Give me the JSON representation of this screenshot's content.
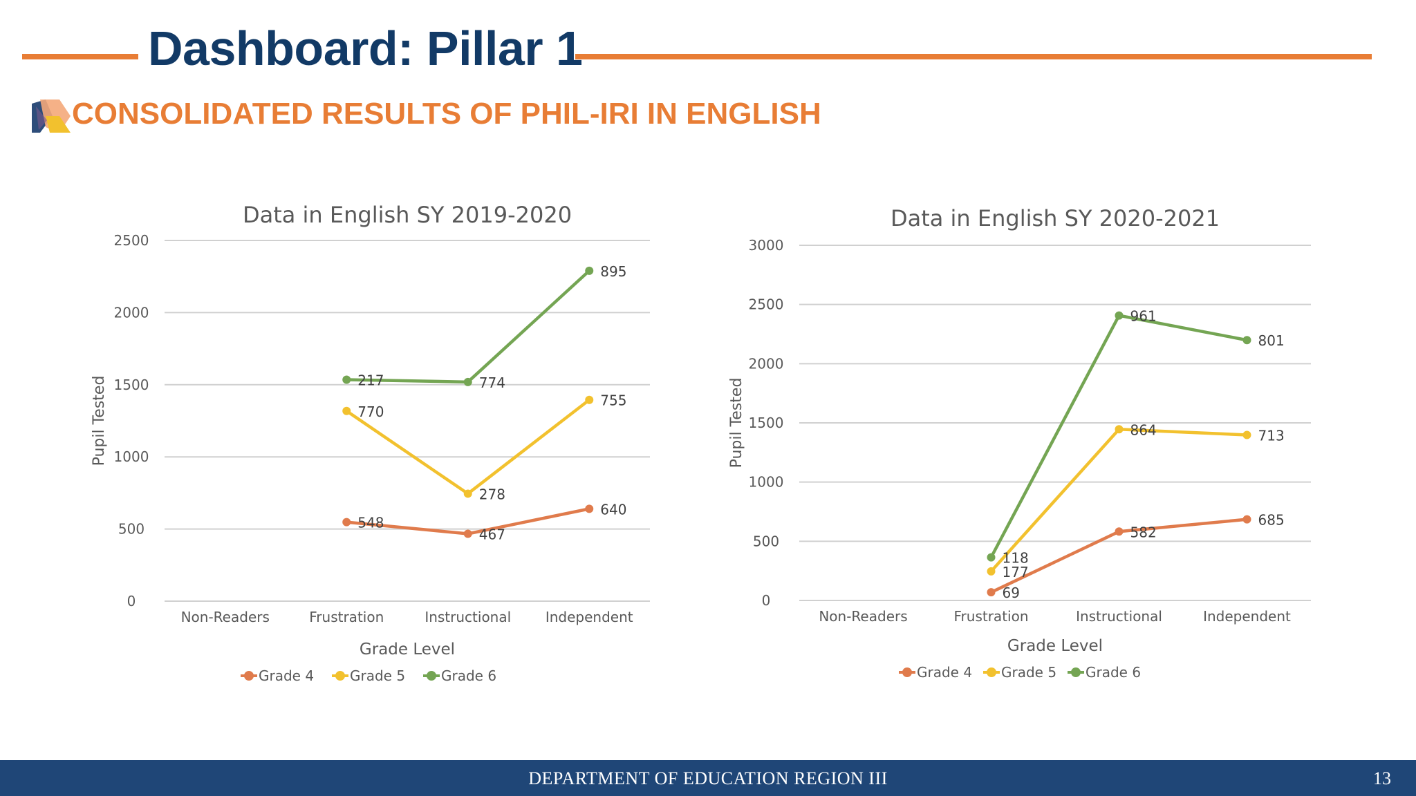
{
  "header": {
    "title": "Dashboard: Pillar 1",
    "subtitle": "CONSOLIDATED RESULTS OF PHIL-IRI IN ENGLISH",
    "accent_color": "#e87d35",
    "title_color": "#123a66"
  },
  "footer": {
    "text": "DEPARTMENT OF EDUCATION REGION III",
    "page_number": "13",
    "color": "#1f4677"
  },
  "chart_data": [
    {
      "type": "line",
      "title": "Data in English SY 2019-2020",
      "xlabel": "Grade Level",
      "ylabel": "Pupil Tested",
      "ylim": [
        0,
        2500
      ],
      "yticks": [
        0,
        500,
        1000,
        1500,
        2000,
        2500
      ],
      "categories": [
        "Non-Readers",
        "Frustration",
        "Instructional",
        "Independent"
      ],
      "legend_position": "bottom",
      "grid": true,
      "stacked": true,
      "series": [
        {
          "name": "Grade 4",
          "color": "#e07b4c",
          "values": [
            null,
            548,
            467,
            640
          ],
          "labels": [
            "",
            "548",
            "467",
            "640"
          ]
        },
        {
          "name": "Grade 5",
          "color": "#f2c12e",
          "values": [
            null,
            770,
            278,
            755
          ],
          "labels": [
            "",
            "770",
            "278",
            "755"
          ]
        },
        {
          "name": "Grade 6",
          "color": "#74a553",
          "values": [
            null,
            217,
            774,
            895
          ],
          "labels": [
            "",
            "217",
            "774",
            "895"
          ]
        }
      ]
    },
    {
      "type": "line",
      "title": "Data in English SY 2020-2021",
      "xlabel": "Grade Level",
      "ylabel": "Pupil Tested",
      "ylim": [
        0,
        3000
      ],
      "yticks": [
        0,
        500,
        1000,
        1500,
        2000,
        2500,
        3000
      ],
      "categories": [
        "Non-Readers",
        "Frustration",
        "Instructional",
        "Independent"
      ],
      "legend_position": "bottom",
      "grid": true,
      "stacked": true,
      "series": [
        {
          "name": "Grade 4",
          "color": "#e07b4c",
          "values": [
            null,
            69,
            582,
            685
          ],
          "labels": [
            "",
            "69",
            "582",
            "685"
          ]
        },
        {
          "name": "Grade 5",
          "color": "#f2c12e",
          "values": [
            null,
            177,
            864,
            713
          ],
          "labels": [
            "",
            "177",
            "864",
            "713"
          ]
        },
        {
          "name": "Grade 6",
          "color": "#74a553",
          "values": [
            null,
            118,
            961,
            801
          ],
          "labels": [
            "",
            "118",
            "961",
            "801"
          ]
        }
      ]
    }
  ]
}
